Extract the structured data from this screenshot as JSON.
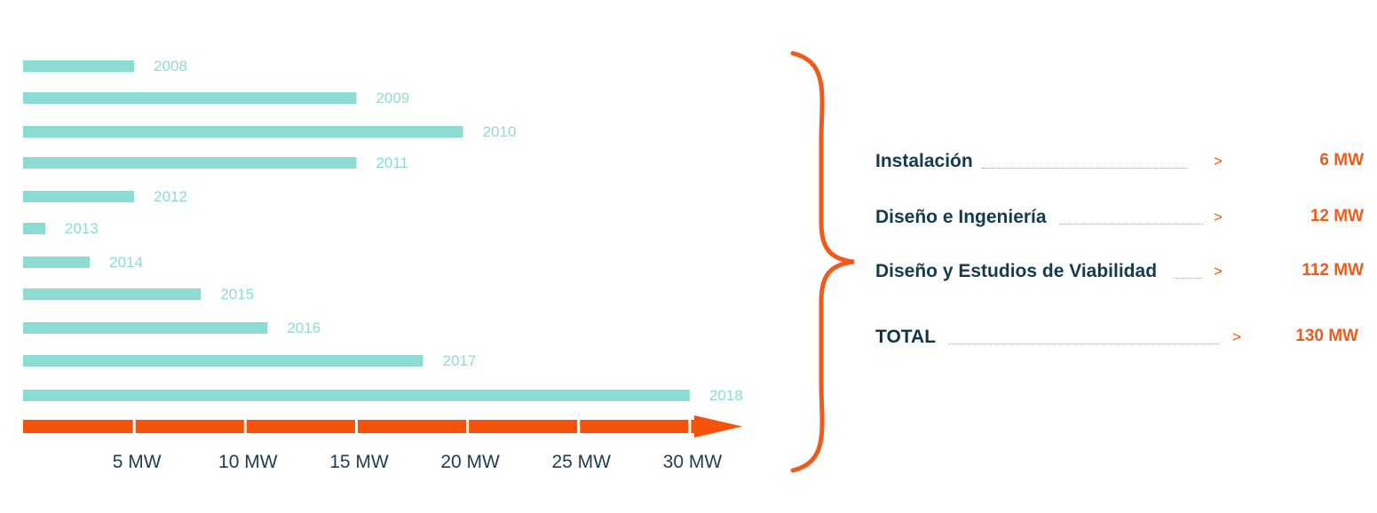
{
  "chart_data": {
    "type": "bar",
    "orientation": "horizontal",
    "categories": [
      "2008",
      "2009",
      "2010",
      "2011",
      "2012",
      "2013",
      "2014",
      "2015",
      "2016",
      "2017",
      "2018"
    ],
    "values": [
      5,
      15,
      19.8,
      15,
      5,
      1,
      3,
      8,
      11,
      18,
      30
    ],
    "x_ticks": [
      "5 MW",
      "10 MW",
      "15 MW",
      "20 MW",
      "25 MW",
      "30 MW"
    ],
    "x_tick_values": [
      5,
      10,
      15,
      20,
      25,
      30
    ],
    "xlim": [
      0,
      32
    ],
    "grid": false,
    "colors": {
      "bar": "#8ddcd4",
      "axis": "#f5520c",
      "brace": "#f05a1a"
    }
  },
  "summary": {
    "rows": [
      {
        "label": "Instalación",
        "arrow": ">",
        "value": "6 MW"
      },
      {
        "label": "Diseño e Ingeniería",
        "arrow": ">",
        "value": "12 MW"
      },
      {
        "label": "Diseño y Estudios de Viabilidad",
        "arrow": ">",
        "value": "112 MW"
      }
    ],
    "total": {
      "label": "TOTAL",
      "arrow": ">",
      "value": "130 MW"
    }
  }
}
